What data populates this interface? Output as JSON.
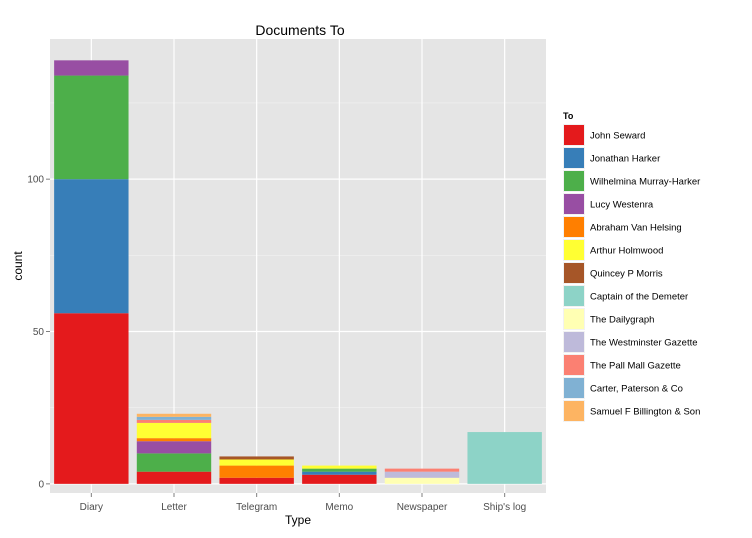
{
  "chart_data": {
    "type": "bar",
    "stacked": true,
    "title": "Documents To",
    "xlabel": "Type",
    "ylabel": "count",
    "ylim": [
      -3,
      146
    ],
    "yticks": [
      0,
      50,
      100
    ],
    "grid": true,
    "background": "#e5e5e5",
    "legend_position": "right",
    "legend_title": "To",
    "categories": [
      "Diary",
      "Letter",
      "Telegram",
      "Memo",
      "Newspaper",
      "Ship's log"
    ],
    "series": [
      {
        "name": "John Seward",
        "color": "#e41a1c",
        "values": [
          56,
          4,
          2,
          3,
          0,
          0
        ]
      },
      {
        "name": "Jonathan Harker",
        "color": "#377eb8",
        "values": [
          44,
          0,
          0,
          1,
          0,
          0
        ]
      },
      {
        "name": "Wilhelmina Murray-Harker",
        "color": "#4daf4a",
        "values": [
          34,
          6,
          0,
          1,
          0,
          0
        ]
      },
      {
        "name": "Lucy Westenra",
        "color": "#984ea3",
        "values": [
          5,
          4,
          0,
          0,
          0,
          0
        ]
      },
      {
        "name": "Abraham Van Helsing",
        "color": "#ff7f00",
        "values": [
          0,
          1,
          4,
          0,
          0,
          0
        ]
      },
      {
        "name": "Arthur Holmwood",
        "color": "#ffff33",
        "values": [
          0,
          5,
          2,
          1,
          0,
          0
        ]
      },
      {
        "name": "Quincey P Morris",
        "color": "#a65628",
        "values": [
          0,
          0,
          1,
          0,
          0,
          0
        ]
      },
      {
        "name": "Captain of the Demeter",
        "color": "#8dd3c7",
        "values": [
          0,
          0,
          0,
          0,
          0,
          17
        ]
      },
      {
        "name": "The Dailygraph",
        "color": "#ffffb3",
        "values": [
          0,
          0,
          0,
          0,
          2,
          0
        ]
      },
      {
        "name": "The Westminster Gazette",
        "color": "#bebada",
        "values": [
          0,
          0,
          0,
          0,
          2,
          0
        ]
      },
      {
        "name": "The Pall Mall Gazette",
        "color": "#fb8072",
        "values": [
          0,
          1,
          0,
          0,
          1,
          0
        ]
      },
      {
        "name": "Carter, Paterson & Co",
        "color": "#80b1d3",
        "values": [
          0,
          1,
          0,
          0,
          0,
          0
        ]
      },
      {
        "name": "Samuel F Billington & Son",
        "color": "#fdb462",
        "values": [
          0,
          1,
          0,
          0,
          0,
          0
        ]
      }
    ]
  }
}
